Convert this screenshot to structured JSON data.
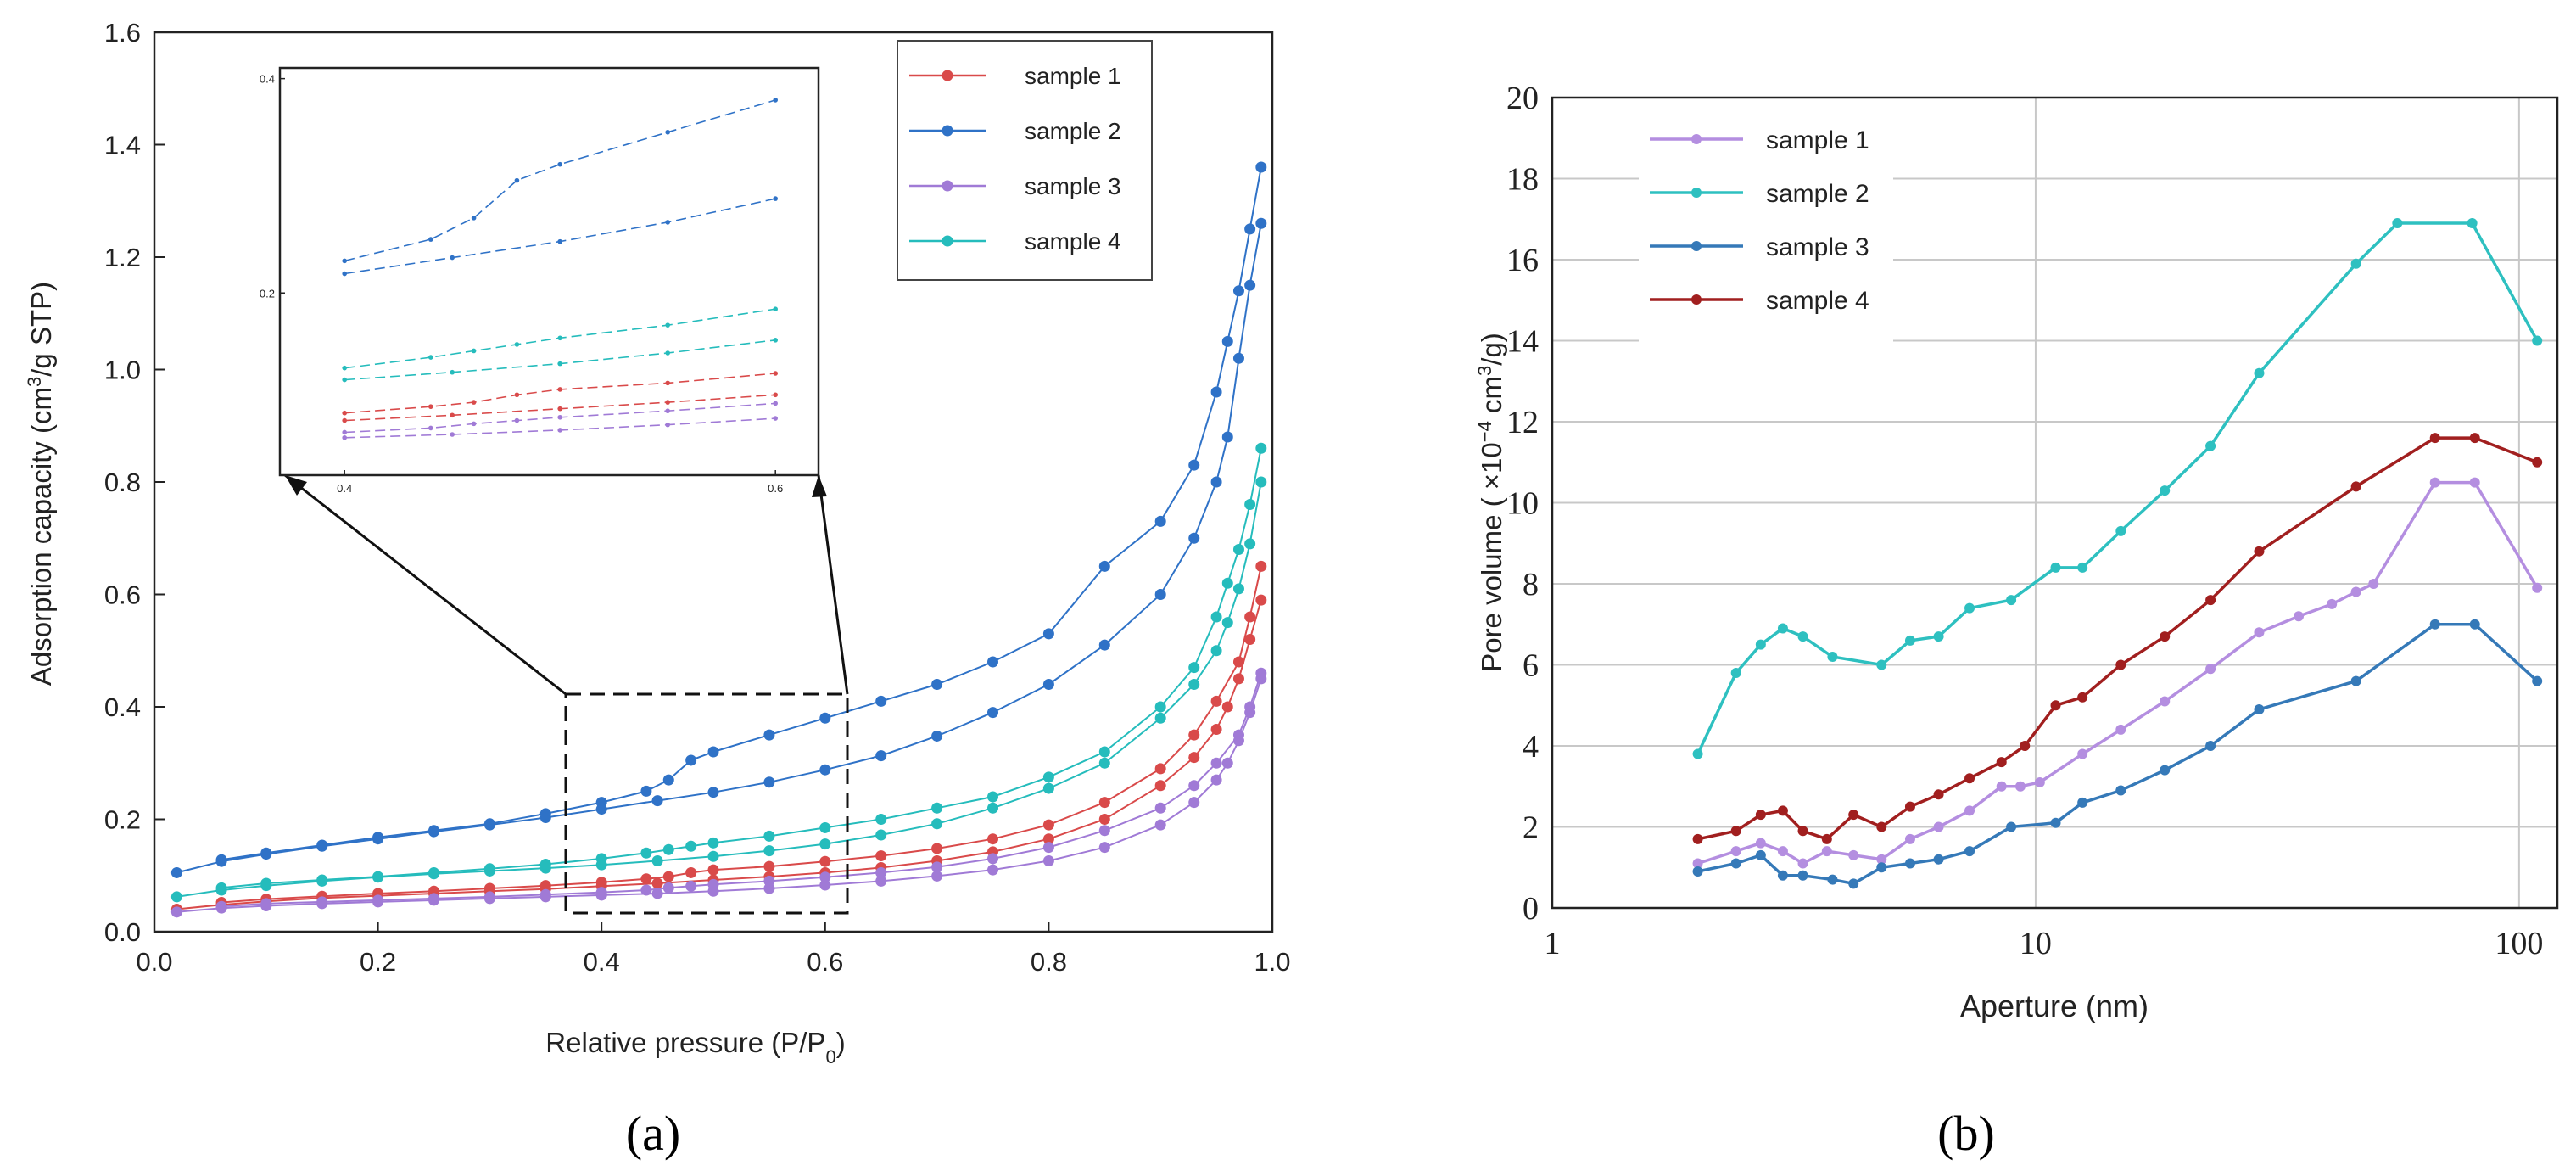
{
  "colors": {
    "a_sample1": "#d94a4a",
    "a_sample2": "#2f72c7",
    "a_sample3": "#a07ad6",
    "a_sample4": "#25bcbc",
    "b_sample1": "#b48ee0",
    "b_sample2": "#2ec0c0",
    "b_sample3": "#3579b8",
    "b_sample4": "#a11f1f"
  },
  "chart_data": [
    {
      "id": "a",
      "type": "line",
      "panel_label": "(a)",
      "xlabel": "Relative pressure (P/P0)",
      "ylabel": "Adsorption capacity (cm3/g STP)",
      "xlim": [
        0.0,
        1.0
      ],
      "ylim": [
        0.0,
        1.6
      ],
      "xticks": [
        "0.0",
        "0.2",
        "0.4",
        "0.6",
        "0.8",
        "1.0"
      ],
      "yticks": [
        "0.0",
        "0.2",
        "0.4",
        "0.6",
        "0.8",
        "1.0",
        "1.2",
        "1.4",
        "1.6"
      ],
      "legend_position": "top-right",
      "inset": {
        "xlim": [
          0.37,
          0.62
        ],
        "ylim": [
          0.03,
          0.41
        ],
        "xticks": [
          "0.4",
          "0.6"
        ],
        "yticks": [
          "0.2",
          "0.4"
        ]
      },
      "series": [
        {
          "name": "sample 1",
          "adsorption_x": [
            0.02,
            0.06,
            0.1,
            0.15,
            0.2,
            0.25,
            0.3,
            0.35,
            0.4,
            0.45,
            0.5,
            0.55,
            0.6,
            0.65,
            0.7,
            0.75,
            0.8,
            0.85,
            0.9,
            0.93,
            0.95,
            0.96,
            0.97,
            0.98,
            0.99
          ],
          "adsorption_y": [
            0.04,
            0.048,
            0.054,
            0.06,
            0.064,
            0.068,
            0.072,
            0.076,
            0.081,
            0.086,
            0.092,
            0.098,
            0.105,
            0.114,
            0.126,
            0.142,
            0.165,
            0.2,
            0.26,
            0.31,
            0.36,
            0.4,
            0.45,
            0.52,
            0.59
          ],
          "desorption_x": [
            0.99,
            0.98,
            0.97,
            0.95,
            0.93,
            0.9,
            0.85,
            0.8,
            0.75,
            0.7,
            0.65,
            0.6,
            0.55,
            0.5,
            0.48,
            0.46,
            0.44,
            0.4,
            0.35,
            0.3,
            0.25,
            0.2,
            0.15,
            0.1,
            0.06
          ],
          "desorption_y": [
            0.65,
            0.56,
            0.48,
            0.41,
            0.35,
            0.29,
            0.23,
            0.19,
            0.165,
            0.148,
            0.135,
            0.125,
            0.116,
            0.11,
            0.105,
            0.098,
            0.094,
            0.088,
            0.082,
            0.077,
            0.072,
            0.068,
            0.063,
            0.058,
            0.052
          ]
        },
        {
          "name": "sample 2",
          "adsorption_x": [
            0.02,
            0.06,
            0.1,
            0.15,
            0.2,
            0.25,
            0.3,
            0.35,
            0.4,
            0.45,
            0.5,
            0.55,
            0.6,
            0.65,
            0.7,
            0.75,
            0.8,
            0.85,
            0.9,
            0.93,
            0.95,
            0.96,
            0.97,
            0.98,
            0.99
          ],
          "adsorption_y": [
            0.105,
            0.125,
            0.138,
            0.152,
            0.165,
            0.178,
            0.19,
            0.203,
            0.218,
            0.233,
            0.248,
            0.266,
            0.288,
            0.313,
            0.348,
            0.39,
            0.44,
            0.51,
            0.6,
            0.7,
            0.8,
            0.88,
            1.02,
            1.15,
            1.26
          ],
          "desorption_x": [
            0.99,
            0.98,
            0.97,
            0.96,
            0.95,
            0.93,
            0.9,
            0.85,
            0.8,
            0.75,
            0.7,
            0.65,
            0.6,
            0.55,
            0.5,
            0.48,
            0.46,
            0.44,
            0.4,
            0.35,
            0.3,
            0.25,
            0.2,
            0.15,
            0.1,
            0.06
          ],
          "desorption_y": [
            1.36,
            1.25,
            1.14,
            1.05,
            0.96,
            0.83,
            0.73,
            0.65,
            0.53,
            0.48,
            0.44,
            0.41,
            0.38,
            0.35,
            0.32,
            0.305,
            0.27,
            0.25,
            0.23,
            0.21,
            0.192,
            0.18,
            0.168,
            0.154,
            0.14,
            0.128
          ]
        },
        {
          "name": "sample 3",
          "adsorption_x": [
            0.02,
            0.06,
            0.1,
            0.15,
            0.2,
            0.25,
            0.3,
            0.35,
            0.4,
            0.45,
            0.5,
            0.55,
            0.6,
            0.65,
            0.7,
            0.75,
            0.8,
            0.85,
            0.9,
            0.93,
            0.95,
            0.96,
            0.97,
            0.98,
            0.99
          ],
          "adsorption_y": [
            0.035,
            0.042,
            0.046,
            0.05,
            0.053,
            0.056,
            0.059,
            0.062,
            0.065,
            0.068,
            0.072,
            0.077,
            0.083,
            0.09,
            0.099,
            0.11,
            0.126,
            0.15,
            0.19,
            0.23,
            0.27,
            0.3,
            0.34,
            0.39,
            0.45
          ],
          "desorption_x": [
            0.99,
            0.98,
            0.97,
            0.95,
            0.93,
            0.9,
            0.85,
            0.8,
            0.75,
            0.7,
            0.65,
            0.6,
            0.55,
            0.5,
            0.48,
            0.46,
            0.44,
            0.4,
            0.35,
            0.3,
            0.25,
            0.2,
            0.15,
            0.1,
            0.06
          ],
          "desorption_y": [
            0.46,
            0.4,
            0.35,
            0.3,
            0.26,
            0.22,
            0.18,
            0.15,
            0.13,
            0.115,
            0.105,
            0.097,
            0.09,
            0.084,
            0.081,
            0.078,
            0.074,
            0.07,
            0.066,
            0.062,
            0.059,
            0.056,
            0.053,
            0.05,
            0.045
          ]
        },
        {
          "name": "sample 4",
          "adsorption_x": [
            0.02,
            0.06,
            0.1,
            0.15,
            0.2,
            0.25,
            0.3,
            0.35,
            0.4,
            0.45,
            0.5,
            0.55,
            0.6,
            0.65,
            0.7,
            0.75,
            0.8,
            0.85,
            0.9,
            0.93,
            0.95,
            0.96,
            0.97,
            0.98,
            0.99
          ],
          "adsorption_y": [
            0.062,
            0.074,
            0.082,
            0.09,
            0.097,
            0.103,
            0.108,
            0.113,
            0.119,
            0.126,
            0.134,
            0.144,
            0.156,
            0.172,
            0.192,
            0.22,
            0.255,
            0.3,
            0.38,
            0.44,
            0.5,
            0.55,
            0.61,
            0.69,
            0.8
          ],
          "desorption_x": [
            0.99,
            0.98,
            0.97,
            0.96,
            0.95,
            0.93,
            0.9,
            0.85,
            0.8,
            0.75,
            0.7,
            0.65,
            0.6,
            0.55,
            0.5,
            0.48,
            0.46,
            0.44,
            0.4,
            0.35,
            0.3,
            0.25,
            0.2,
            0.15,
            0.1,
            0.06
          ],
          "desorption_y": [
            0.86,
            0.76,
            0.68,
            0.62,
            0.56,
            0.47,
            0.4,
            0.32,
            0.275,
            0.24,
            0.22,
            0.2,
            0.185,
            0.17,
            0.158,
            0.152,
            0.146,
            0.14,
            0.13,
            0.12,
            0.112,
            0.105,
            0.098,
            0.092,
            0.086,
            0.078
          ]
        }
      ]
    },
    {
      "id": "b",
      "type": "line",
      "panel_label": "(b)",
      "xlabel": "Aperture (nm)",
      "ylabel": "Pore volume ( ×10−4 cm3/g)",
      "xscale": "log",
      "xlim": [
        1,
        120
      ],
      "ylim": [
        0,
        20
      ],
      "xticks": [
        "1",
        "10",
        "100"
      ],
      "yticks": [
        "0",
        "2",
        "4",
        "6",
        "8",
        "10",
        "12",
        "14",
        "16",
        "18",
        "20"
      ],
      "grid": true,
      "legend_position": "top-left",
      "series": [
        {
          "name": "sample 1",
          "x": [
            2.0,
            2.4,
            2.7,
            3.0,
            3.3,
            3.7,
            4.2,
            4.8,
            5.5,
            6.3,
            7.3,
            8.5,
            9.3,
            10.2,
            12.5,
            15.0,
            18.5,
            23.0,
            29.0,
            35.0,
            41.0,
            46.0,
            50.0,
            67.0,
            81.0,
            109.0
          ],
          "y": [
            1.1,
            1.4,
            1.6,
            1.4,
            1.1,
            1.4,
            1.3,
            1.2,
            1.7,
            2.0,
            2.4,
            3.0,
            3.0,
            3.1,
            3.8,
            4.4,
            5.1,
            5.9,
            6.8,
            7.2,
            7.5,
            7.8,
            8.0,
            10.5,
            10.5,
            7.9
          ]
        },
        {
          "name": "sample 2",
          "x": [
            2.0,
            2.4,
            2.7,
            3.0,
            3.3,
            3.8,
            4.8,
            5.5,
            6.3,
            7.3,
            8.9,
            11.0,
            12.5,
            15.0,
            18.5,
            23.0,
            29.0,
            46.0,
            56.0,
            80.0,
            109.0
          ],
          "y": [
            3.8,
            5.8,
            6.5,
            6.9,
            6.7,
            6.2,
            6.0,
            6.6,
            6.7,
            7.4,
            7.6,
            8.4,
            8.4,
            9.3,
            10.3,
            11.4,
            13.2,
            15.9,
            16.9,
            16.9,
            14.0
          ]
        },
        {
          "name": "sample 3",
          "x": [
            2.0,
            2.4,
            2.7,
            3.0,
            3.3,
            3.8,
            4.2,
            4.8,
            5.5,
            6.3,
            7.3,
            8.9,
            11.0,
            12.5,
            15.0,
            18.5,
            23.0,
            29.0,
            46.0,
            67.0,
            81.0,
            109.0
          ],
          "y": [
            0.9,
            1.1,
            1.3,
            0.8,
            0.8,
            0.7,
            0.6,
            1.0,
            1.1,
            1.2,
            1.4,
            2.0,
            2.1,
            2.6,
            2.9,
            3.4,
            4.0,
            4.9,
            5.6,
            7.0,
            7.0,
            5.6
          ]
        },
        {
          "name": "sample 4",
          "x": [
            2.0,
            2.4,
            2.7,
            3.0,
            3.3,
            3.7,
            4.2,
            4.8,
            5.5,
            6.3,
            7.3,
            8.5,
            9.5,
            11.0,
            12.5,
            15.0,
            18.5,
            23.0,
            29.0,
            46.0,
            67.0,
            81.0,
            109.0
          ],
          "y": [
            1.7,
            1.9,
            2.3,
            2.4,
            1.9,
            1.7,
            2.3,
            2.0,
            2.5,
            2.8,
            3.2,
            3.6,
            4.0,
            5.0,
            5.2,
            6.0,
            6.7,
            7.6,
            8.8,
            10.4,
            11.6,
            11.6,
            11.0
          ]
        }
      ]
    }
  ]
}
